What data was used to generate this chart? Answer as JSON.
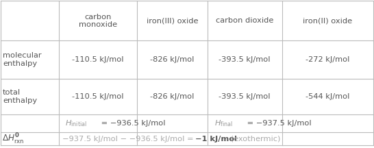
{
  "col_headers": [
    "",
    "carbon\nmonoxide",
    "iron(III) oxide",
    "carbon dioxide",
    "iron(II) oxide"
  ],
  "row1_label": "molecular\nenthalpy",
  "row1_vals": [
    "-110.5 kJ/mol",
    "-826 kJ/mol",
    "-393.5 kJ/mol",
    "-272 kJ/mol"
  ],
  "row2_label": "total\nenthalpy",
  "row2_vals": [
    "-110.5 kJ/mol",
    "-826 kJ/mol",
    "-393.5 kJ/mol",
    "-544 kJ/mol"
  ],
  "row3_col1_val": " = −936.5 kJ/mol",
  "row3_col2_val": " = −937.5 kJ/mol",
  "row4_val_normal": "−937.5 kJ/mol − −936.5 kJ/mol = ",
  "row4_val_bold": "−1 kJ/mol",
  "row4_val_end": " (exothermic)",
  "bg_color": "#ffffff",
  "border_color": "#bbbbbb",
  "data_text_color": "#555555",
  "light_text_color": "#aaaaaa",
  "italic_text_color": "#999999"
}
